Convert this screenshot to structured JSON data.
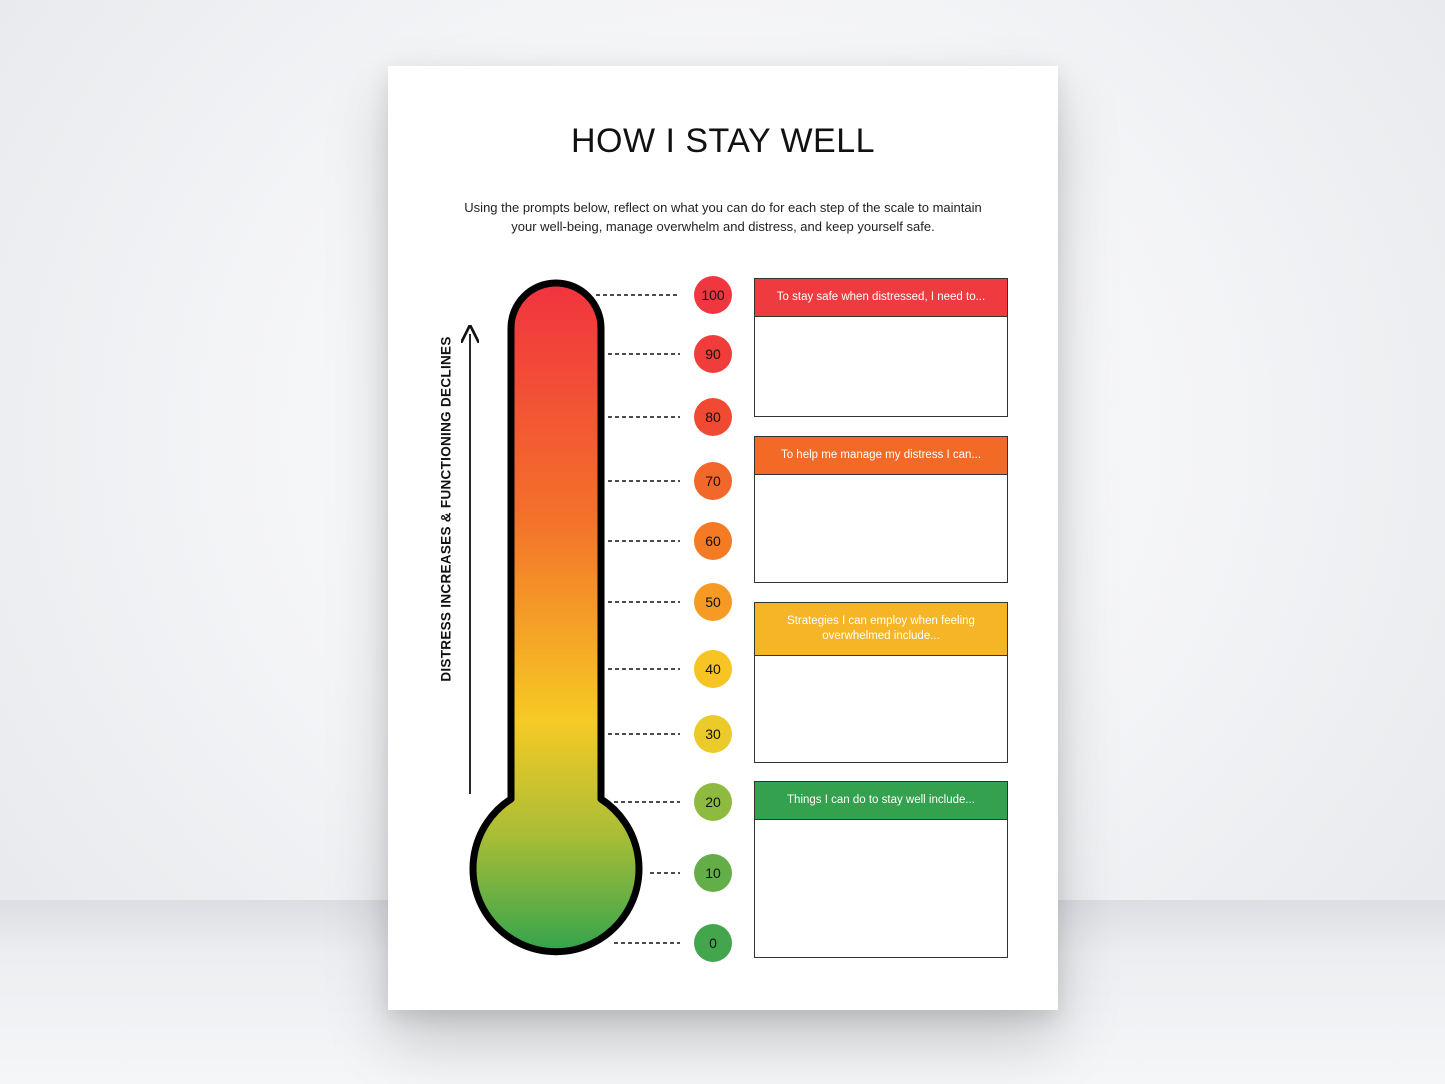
{
  "title": "HOW I STAY WELL",
  "intro": "Using the prompts below, reflect on what you can do for each step of the scale to maintain your well-being, manage overwhelm and distress, and keep yourself safe.",
  "axis_label": "DISTRESS INCREASES & FUNCTIONING DECLINES",
  "scale": [
    {
      "value": "100",
      "color": "#f0373f"
    },
    {
      "value": "90",
      "color": "#f03c3a"
    },
    {
      "value": "80",
      "color": "#f04a32"
    },
    {
      "value": "70",
      "color": "#f2672a"
    },
    {
      "value": "60",
      "color": "#f47a24"
    },
    {
      "value": "50",
      "color": "#f59a22"
    },
    {
      "value": "40",
      "color": "#f6c423"
    },
    {
      "value": "30",
      "color": "#eacb2a"
    },
    {
      "value": "20",
      "color": "#8eba3f"
    },
    {
      "value": "10",
      "color": "#64ae48"
    },
    {
      "value": "0",
      "color": "#43a64d"
    }
  ],
  "prompts": [
    {
      "label": "To stay safe when distressed, I need to...",
      "color": "#ef3b40"
    },
    {
      "label": "To help me manage my distress I can...",
      "color": "#f26a25"
    },
    {
      "label": "Strategies I can employ when feeling overwhelmed include...",
      "color": "#f6b526"
    },
    {
      "label": "Things I can do to stay well include...",
      "color": "#33a14e"
    }
  ]
}
